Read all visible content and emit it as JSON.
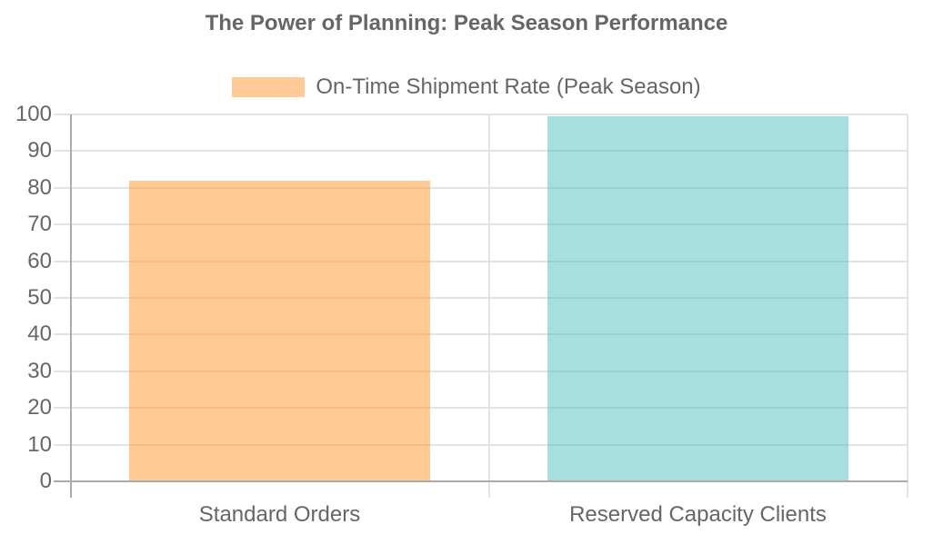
{
  "chart_data": {
    "type": "bar",
    "title": "The Power of Planning: Peak Season Performance",
    "categories": [
      "Standard Orders",
      "Reserved Capacity Clients"
    ],
    "series": [
      {
        "name": "On-Time Shipment Rate (Peak Season)",
        "values": [
          82,
          99.5
        ],
        "colors": [
          "rgba(255,159,64,0.55)",
          "rgba(75,192,192,0.5)"
        ]
      }
    ],
    "xlabel": "",
    "ylabel": "",
    "ylim": [
      0,
      100
    ],
    "ytick_step": 10,
    "grid": true,
    "legend_position": "top",
    "legend_swatch_color": "rgba(255,159,64,0.55)",
    "colors": {
      "grid_line": "#e3e3e3",
      "axis_line": "#ababab",
      "text": "#666666",
      "background": "#ffffff"
    }
  }
}
